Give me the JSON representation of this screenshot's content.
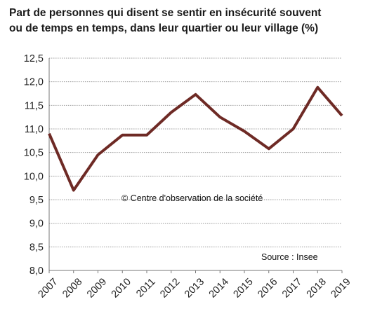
{
  "chart_data": {
    "type": "line",
    "title_lines": [
      "Part de personnes qui disent se sentir en insécurité souvent",
      "ou de temps en temps, dans leur quartier ou leur village (%)"
    ],
    "x": [
      "2007",
      "2008",
      "2009",
      "2010",
      "2011",
      "2012",
      "2013",
      "2014",
      "2015",
      "2016",
      "2017",
      "2018",
      "2019"
    ],
    "series": [
      {
        "values": [
          10.9,
          9.7,
          10.45,
          10.87,
          10.87,
          11.35,
          11.73,
          11.25,
          10.95,
          10.58,
          11.0,
          11.88,
          11.28
        ],
        "color": "#6e2a25"
      }
    ],
    "y_ticks": [
      "8,0",
      "8,5",
      "9,0",
      "9,5",
      "10,0",
      "10,5",
      "11,0",
      "11,5",
      "12,0",
      "12,5"
    ],
    "ylim": [
      8.0,
      12.5
    ],
    "grid": true,
    "annotations": {
      "copyright": "© Centre d'observation de la société",
      "source": "Source : Insee"
    }
  }
}
